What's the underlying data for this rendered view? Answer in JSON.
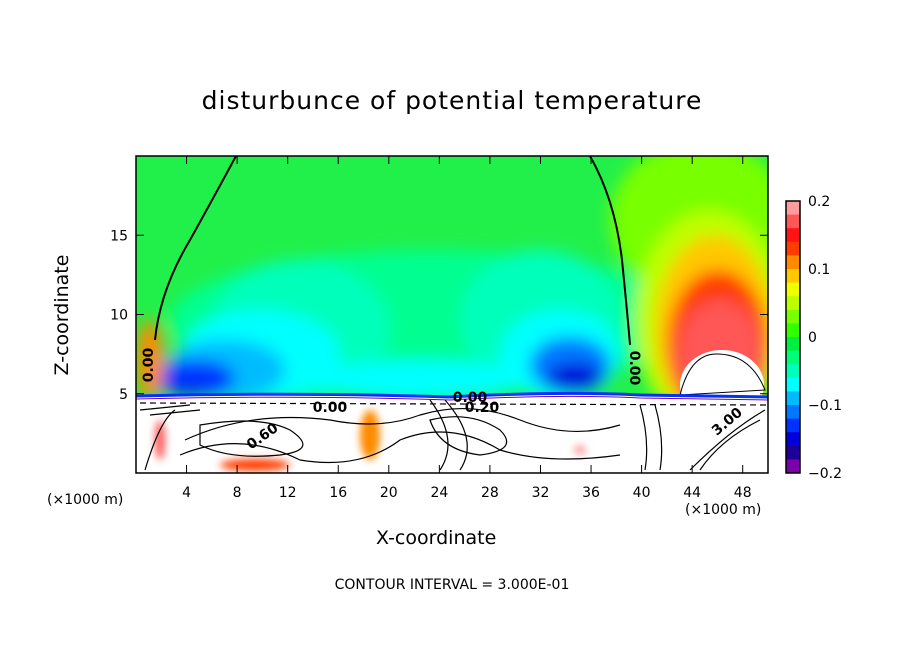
{
  "chart_data": {
    "type": "heatmap",
    "subtype": "filled-contour with line contours",
    "title": "disturbunce of potential temperature",
    "xlabel": "X-coordinate",
    "ylabel": "Z-coordinate",
    "x_unit_left": "(×1000 m)",
    "x_unit_right": "(×1000 m)",
    "xlim": [
      0,
      50
    ],
    "ylim": [
      0,
      20
    ],
    "xticks": [
      4,
      8,
      12,
      16,
      20,
      24,
      28,
      32,
      36,
      40,
      44,
      48
    ],
    "yticks": [
      5,
      10,
      15
    ],
    "colorbar": {
      "range": [
        -0.2,
        0.2
      ],
      "tick_labels": [
        "0.2",
        "0.1",
        "0",
        "−0.1",
        "−0.2"
      ],
      "tick_values": [
        0.2,
        0.1,
        0,
        -0.1,
        -0.2
      ],
      "levels_colors_top_to_bottom": [
        "#ff9c9c",
        "#ff5656",
        "#ff1414",
        "#ff3c00",
        "#ff8a00",
        "#ffc800",
        "#f0ff00",
        "#bcff00",
        "#78ff00",
        "#32ff00",
        "#00f040",
        "#00ff78",
        "#00ffb8",
        "#00ffff",
        "#00bcff",
        "#0078ff",
        "#0032ff",
        "#0000d8",
        "#1e0098",
        "#7a00a8"
      ]
    },
    "contour_labels": [
      "0.00",
      "0.00",
      "0.00",
      "0.60",
      "0.00",
      "0.20",
      "3.00"
    ],
    "footer": "CONTOUR INTERVAL = 3.000E-01"
  }
}
